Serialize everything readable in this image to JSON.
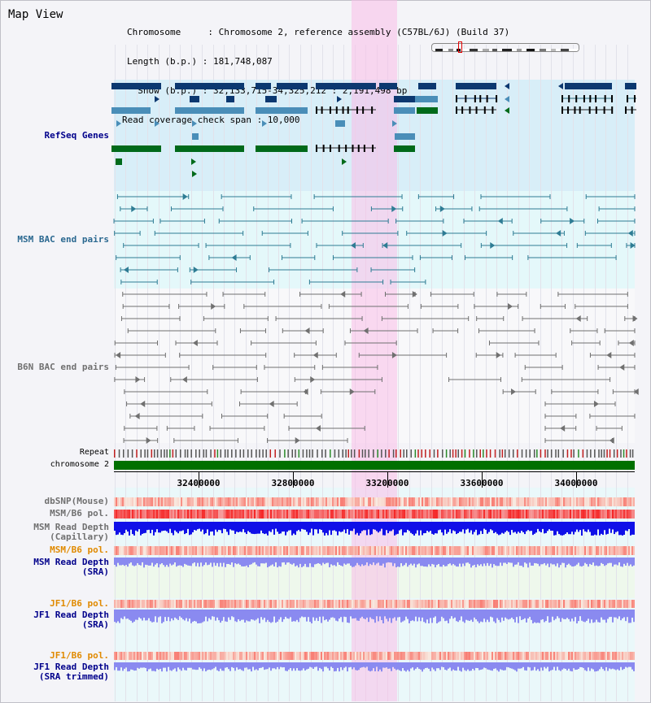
{
  "view": {
    "title": "Map View",
    "header_lines": [
      "Chromosome     : Chromosome 2, reference assembly (C57BL/6J) (Build 37)",
      "Length (b.p.) : 181,748,087",
      "  Show (b.p.) : 32,133,715-34,325,212 : 2,191,498 bp",
      "Read coverage check span : 10,000"
    ]
  },
  "tracks": {
    "refseq": "RefSeq Genes",
    "msm_bac": "MSM BAC end pairs",
    "b6n_bac": "B6N BAC end pairs",
    "repeat": "Repeat",
    "chromosome": "chromosome 2",
    "dbsnp": "dbSNP(Mouse)",
    "msm_b6_pol_1": "MSM/B6 pol.",
    "msm_depth_cap_1": "MSM Read Depth",
    "msm_depth_cap_2": "(Capillary)",
    "msm_b6_pol_2": "MSM/B6 pol.",
    "msm_depth_sra_1": "MSM Read Depth",
    "msm_depth_sra_2": "(SRA)",
    "jf1_pol_1": "JF1/B6 pol.",
    "jf1_depth_sra_1": "JF1 Read Depth",
    "jf1_depth_sra_2": "(SRA)",
    "jf1_pol_2": "JF1/B6 pol.",
    "jf1_depth_trim_1": "JF1 Read Depth",
    "jf1_depth_trim_2": "(SRA trimmed)"
  },
  "axis": {
    "ticks": [
      "32400000",
      "32800000",
      "33200000",
      "33600000",
      "34000000"
    ]
  },
  "colors": {
    "refseq_bg": "#d8eef8",
    "msm_bg": "#e4f8fa",
    "highlight": "#f9d6ef",
    "chromosome": "#007000",
    "navy": "#0c3870",
    "steel": "#4a8eb8",
    "green": "#006a1a",
    "msm_line": "#2e7c94",
    "b6n_line": "#707070",
    "label_blue": "#00008b",
    "label_orange": "#e08a00",
    "label_teal": "#2a6890"
  }
}
